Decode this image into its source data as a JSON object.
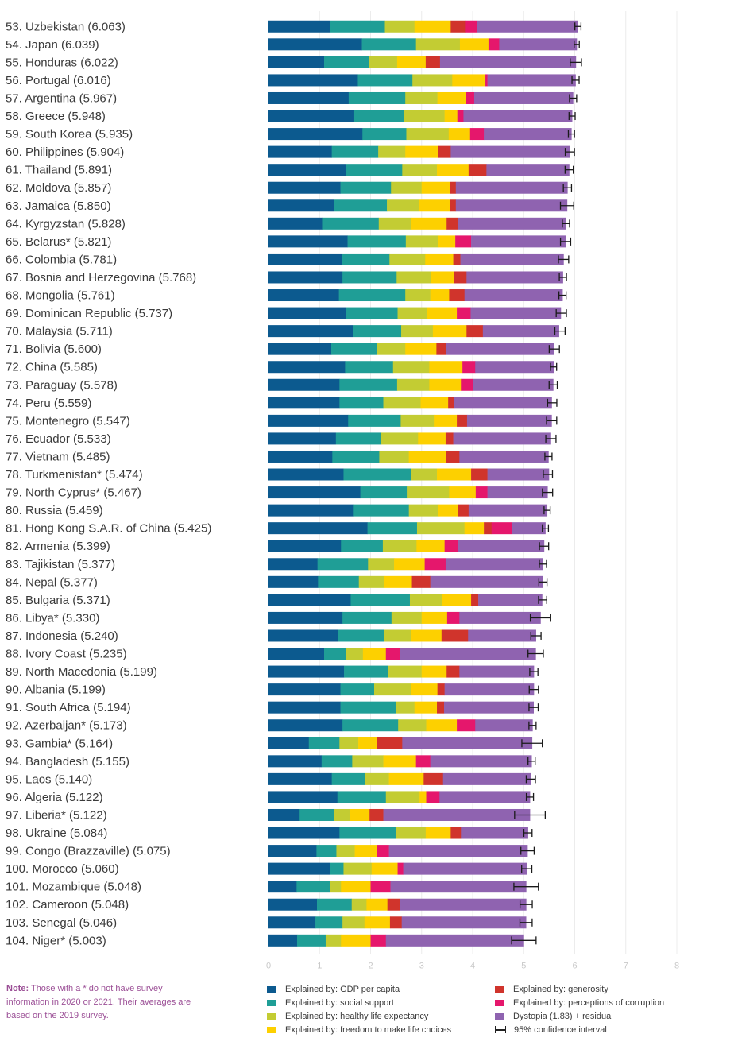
{
  "chart_data": {
    "type": "stacked-bar-horizontal",
    "xlim": [
      0,
      8
    ],
    "x_ticks": [
      "0",
      "1",
      "2",
      "3",
      "4",
      "5",
      "6",
      "7",
      "8"
    ],
    "grid": true,
    "components": [
      {
        "key": "gdp",
        "name": "Explained by: GDP per capita",
        "color": "#0c5a8f"
      },
      {
        "key": "social",
        "name": "Explained by: social support",
        "color": "#1f9e96"
      },
      {
        "key": "health",
        "name": "Explained by: healthy life expectancy",
        "color": "#c3cc33"
      },
      {
        "key": "freedom",
        "name": "Explained by: freedom to make life choices",
        "color": "#fdd000"
      },
      {
        "key": "generosity",
        "name": "Explained by: generosity",
        "color": "#d0342c"
      },
      {
        "key": "corruption",
        "name": "Explained by: perceptions of corruption",
        "color": "#e5176c"
      },
      {
        "key": "dystopia",
        "name": "Dystopia (1.83) + residual",
        "color": "#8f63b0"
      }
    ],
    "ci_label": "95% confidence interval",
    "rows": [
      {
        "label": "53.  Uzbekistan (6.063)",
        "score": 6.063,
        "seg": [
          1.21,
          1.07,
          0.58,
          0.71,
          0.28,
          0.24,
          1.963
        ],
        "ci": 0.06
      },
      {
        "label": "54.  Japan (6.039)",
        "score": 6.039,
        "seg": [
          1.83,
          1.06,
          0.86,
          0.56,
          0.0,
          0.21,
          1.519
        ],
        "ci": 0.05
      },
      {
        "label": "55.  Honduras (6.022)",
        "score": 6.022,
        "seg": [
          1.09,
          0.88,
          0.55,
          0.56,
          0.28,
          0.0,
          2.662
        ],
        "ci": 0.11
      },
      {
        "label": "56.  Portugal (6.016)",
        "score": 6.016,
        "seg": [
          1.75,
          1.07,
          0.78,
          0.65,
          0.0,
          0.04,
          1.726
        ],
        "ci": 0.07
      },
      {
        "label": "57.  Argentina (5.967)",
        "score": 5.967,
        "seg": [
          1.57,
          1.11,
          0.63,
          0.55,
          0.0,
          0.17,
          1.937
        ],
        "ci": 0.07
      },
      {
        "label": "58.  Greece (5.948)",
        "score": 5.948,
        "seg": [
          1.68,
          0.98,
          0.79,
          0.25,
          0.0,
          0.12,
          2.128
        ],
        "ci": 0.06
      },
      {
        "label": "59.  South Korea (5.935)",
        "score": 5.935,
        "seg": [
          1.84,
          0.86,
          0.83,
          0.42,
          0.0,
          0.27,
          1.715
        ],
        "ci": 0.06
      },
      {
        "label": "60.  Philippines (5.904)",
        "score": 5.904,
        "seg": [
          1.24,
          0.91,
          0.53,
          0.65,
          0.24,
          0.0,
          2.334
        ],
        "ci": 0.09
      },
      {
        "label": "61.  Thailand (5.891)",
        "score": 5.891,
        "seg": [
          1.52,
          1.1,
          0.68,
          0.62,
          0.35,
          0.0,
          1.621
        ],
        "ci": 0.08
      },
      {
        "label": "62.  Moldova (5.857)",
        "score": 5.857,
        "seg": [
          1.41,
          0.99,
          0.6,
          0.55,
          0.12,
          0.0,
          2.187
        ],
        "ci": 0.08
      },
      {
        "label": "63.  Jamaica (5.850)",
        "score": 5.85,
        "seg": [
          1.28,
          1.04,
          0.63,
          0.6,
          0.12,
          0.0,
          2.18
        ],
        "ci": 0.13
      },
      {
        "label": "64.  Kyrgyzstan (5.828)",
        "score": 5.828,
        "seg": [
          1.05,
          1.11,
          0.64,
          0.69,
          0.22,
          0.0,
          2.118
        ],
        "ci": 0.07
      },
      {
        "label": "65.  Belarus* (5.821)",
        "score": 5.821,
        "seg": [
          1.55,
          1.14,
          0.64,
          0.33,
          0.0,
          0.31,
          1.851
        ],
        "ci": 0.1
      },
      {
        "label": "66.  Colombia (5.781)",
        "score": 5.781,
        "seg": [
          1.44,
          0.93,
          0.7,
          0.55,
          0.14,
          0.0,
          2.021
        ],
        "ci": 0.1
      },
      {
        "label": "67.  Bosnia and Herzegovina (5.768)",
        "score": 5.768,
        "seg": [
          1.45,
          1.06,
          0.67,
          0.45,
          0.25,
          0.0,
          1.888
        ],
        "ci": 0.07
      },
      {
        "label": "68.  Mongolia (5.761)",
        "score": 5.761,
        "seg": [
          1.38,
          1.3,
          0.49,
          0.37,
          0.3,
          0.0,
          1.921
        ],
        "ci": 0.07
      },
      {
        "label": "69.  Dominican Republic (5.737)",
        "score": 5.737,
        "seg": [
          1.52,
          1.01,
          0.57,
          0.59,
          0.0,
          0.27,
          1.767
        ],
        "ci": 0.1
      },
      {
        "label": "70.  Malaysia (5.711)",
        "score": 5.711,
        "seg": [
          1.66,
          0.94,
          0.62,
          0.66,
          0.32,
          0.0,
          1.491
        ],
        "ci": 0.1
      },
      {
        "label": "71.  Bolivia (5.600)",
        "score": 5.6,
        "seg": [
          1.23,
          0.89,
          0.56,
          0.61,
          0.19,
          0.0,
          2.111
        ],
        "ci": 0.1
      },
      {
        "label": "72.  China (5.585)",
        "score": 5.585,
        "seg": [
          1.5,
          0.94,
          0.71,
          0.65,
          0.0,
          0.25,
          1.535
        ],
        "ci": 0.06
      },
      {
        "label": "73.  Paraguay (5.578)",
        "score": 5.578,
        "seg": [
          1.39,
          1.13,
          0.63,
          0.62,
          0.0,
          0.23,
          1.578
        ],
        "ci": 0.08
      },
      {
        "label": "74.  Peru (5.559)",
        "score": 5.559,
        "seg": [
          1.39,
          0.86,
          0.73,
          0.54,
          0.12,
          0.0,
          1.909
        ],
        "ci": 0.09
      },
      {
        "label": "75.  Montenegro (5.547)",
        "score": 5.547,
        "seg": [
          1.56,
          1.03,
          0.65,
          0.45,
          0.2,
          0.0,
          1.657
        ],
        "ci": 0.1
      },
      {
        "label": "76.  Ecuador (5.533)",
        "score": 5.533,
        "seg": [
          1.32,
          0.89,
          0.72,
          0.54,
          0.15,
          0.0,
          1.913
        ],
        "ci": 0.1
      },
      {
        "label": "77.  Vietnam (5.485)",
        "score": 5.485,
        "seg": [
          1.25,
          0.92,
          0.58,
          0.73,
          0.26,
          0.0,
          1.745
        ],
        "ci": 0.07
      },
      {
        "label": "78.  Turkmenistan* (5.474)",
        "score": 5.474,
        "seg": [
          1.47,
          1.32,
          0.51,
          0.67,
          0.32,
          0.0,
          1.204
        ],
        "ci": 0.09
      },
      {
        "label": "79.  North Cyprus* (5.467)",
        "score": 5.467,
        "seg": [
          1.8,
          0.91,
          0.83,
          0.52,
          0.0,
          0.23,
          1.177
        ],
        "ci": 0.1
      },
      {
        "label": "80.  Russia (5.459)",
        "score": 5.459,
        "seg": [
          1.67,
          1.08,
          0.58,
          0.39,
          0.2,
          0.0,
          1.539
        ],
        "ci": 0.06
      },
      {
        "label": "81.  Hong Kong S.A.R. of China (5.425)",
        "score": 5.425,
        "seg": [
          1.94,
          0.97,
          0.93,
          0.38,
          0.15,
          0.4,
          0.655
        ],
        "ci": 0.06
      },
      {
        "label": "82.  Armenia (5.399)",
        "score": 5.399,
        "seg": [
          1.42,
          0.82,
          0.66,
          0.55,
          0.0,
          0.27,
          1.679
        ],
        "ci": 0.09
      },
      {
        "label": "83.  Tajikistan (5.377)",
        "score": 5.377,
        "seg": [
          0.96,
          0.99,
          0.51,
          0.6,
          0.0,
          0.41,
          1.907
        ],
        "ci": 0.07
      },
      {
        "label": "84.  Nepal (5.377)",
        "score": 5.377,
        "seg": [
          0.97,
          0.8,
          0.5,
          0.54,
          0.36,
          0.0,
          2.207
        ],
        "ci": 0.08
      },
      {
        "label": "85.  Bulgaria (5.371)",
        "score": 5.371,
        "seg": [
          1.61,
          1.16,
          0.63,
          0.57,
          0.14,
          0.0,
          1.251
        ],
        "ci": 0.08
      },
      {
        "label": "86.  Libya* (5.330)",
        "score": 5.33,
        "seg": [
          1.45,
          0.96,
          0.59,
          0.5,
          0.0,
          0.24,
          1.59
        ],
        "ci": 0.2
      },
      {
        "label": "87.  Indonesia (5.240)",
        "score": 5.24,
        "seg": [
          1.36,
          0.9,
          0.53,
          0.6,
          0.52,
          0.0,
          1.33
        ],
        "ci": 0.1
      },
      {
        "label": "88.  Ivory Coast (5.235)",
        "score": 5.235,
        "seg": [
          1.09,
          0.43,
          0.33,
          0.45,
          0.0,
          0.27,
          2.665
        ],
        "ci": 0.15
      },
      {
        "label": "89.  North Macedonia (5.199)",
        "score": 5.199,
        "seg": [
          1.48,
          0.86,
          0.66,
          0.49,
          0.25,
          0.0,
          1.459
        ],
        "ci": 0.08
      },
      {
        "label": "90.  Albania (5.199)",
        "score": 5.199,
        "seg": [
          1.41,
          0.66,
          0.72,
          0.52,
          0.14,
          0.0,
          1.749
        ],
        "ci": 0.09
      },
      {
        "label": "91.  South Africa (5.194)",
        "score": 5.194,
        "seg": [
          1.41,
          1.08,
          0.37,
          0.44,
          0.14,
          0.0,
          1.754
        ],
        "ci": 0.09
      },
      {
        "label": "92.  Azerbaijan* (5.173)",
        "score": 5.173,
        "seg": [
          1.45,
          1.09,
          0.55,
          0.6,
          0.0,
          0.36,
          1.123
        ],
        "ci": 0.07
      },
      {
        "label": "93.  Gambia* (5.164)",
        "score": 5.164,
        "seg": [
          0.79,
          0.6,
          0.37,
          0.37,
          0.49,
          0.0,
          2.544
        ],
        "ci": 0.2
      },
      {
        "label": "94.  Bangladesh (5.155)",
        "score": 5.155,
        "seg": [
          1.04,
          0.6,
          0.61,
          0.64,
          0.0,
          0.28,
          1.985
        ],
        "ci": 0.07
      },
      {
        "label": "95.  Laos (5.140)",
        "score": 5.14,
        "seg": [
          1.24,
          0.65,
          0.47,
          0.68,
          0.38,
          0.0,
          1.72
        ],
        "ci": 0.09
      },
      {
        "label": "96.  Algeria (5.122)",
        "score": 5.122,
        "seg": [
          1.35,
          0.95,
          0.66,
          0.13,
          0.0,
          0.26,
          1.772
        ],
        "ci": 0.07
      },
      {
        "label": "97.  Liberia* (5.122)",
        "score": 5.122,
        "seg": [
          0.61,
          0.67,
          0.31,
          0.39,
          0.27,
          0.0,
          2.872
        ],
        "ci": 0.3
      },
      {
        "label": "98.  Ukraine (5.084)",
        "score": 5.084,
        "seg": [
          1.39,
          1.1,
          0.59,
          0.49,
          0.2,
          0.0,
          1.314
        ],
        "ci": 0.08
      },
      {
        "label": "99.  Congo (Brazzaville) (5.075)",
        "score": 5.075,
        "seg": [
          0.94,
          0.39,
          0.36,
          0.43,
          0.0,
          0.24,
          2.715
        ],
        "ci": 0.13
      },
      {
        "label": "100.  Morocco (5.060)",
        "score": 5.06,
        "seg": [
          1.2,
          0.27,
          0.55,
          0.51,
          0.0,
          0.11,
          2.42
        ],
        "ci": 0.1
      },
      {
        "label": "101.  Mozambique (5.048)",
        "score": 5.048,
        "seg": [
          0.55,
          0.65,
          0.22,
          0.58,
          0.0,
          0.39,
          2.658
        ],
        "ci": 0.24
      },
      {
        "label": "102.  Cameroon (5.048)",
        "score": 5.048,
        "seg": [
          0.95,
          0.68,
          0.29,
          0.41,
          0.24,
          0.0,
          2.478
        ],
        "ci": 0.12
      },
      {
        "label": "103.  Senegal (5.046)",
        "score": 5.046,
        "seg": [
          0.92,
          0.53,
          0.43,
          0.5,
          0.23,
          0.0,
          2.436
        ],
        "ci": 0.12
      },
      {
        "label": "104.  Niger* (5.003)",
        "score": 5.003,
        "seg": [
          0.56,
          0.56,
          0.3,
          0.58,
          0.0,
          0.3,
          2.703
        ],
        "ci": 0.24
      }
    ]
  },
  "note": {
    "prefix": "Note:",
    "text": "Those with a * do not have survey information in 2020 or 2021. Their averages are based on the 2019 survey."
  }
}
